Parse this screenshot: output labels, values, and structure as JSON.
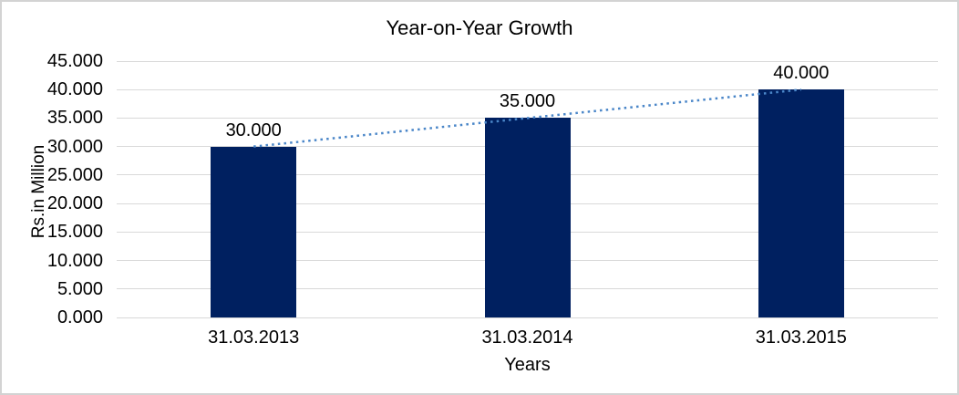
{
  "window": {
    "background_color": "#FFFFFF",
    "border_color": "#D3D3D3"
  },
  "chart_data": {
    "type": "bar",
    "title": "Year-on-Year Growth",
    "categories": [
      "31.03.2013",
      "31.03.2014",
      "31.03.2015"
    ],
    "values": [
      30,
      35,
      40
    ],
    "data_labels": [
      "30.000",
      "35.000",
      "40.000"
    ],
    "xlabel": "Years",
    "ylabel": "Rs.in Million",
    "ylim": [
      0,
      45
    ],
    "ytick_step": 5,
    "ytick_labels": [
      "0.000",
      "5.000",
      "10.000",
      "15.000",
      "20.000",
      "25.000",
      "30.000",
      "35.000",
      "40.000",
      "45.000"
    ],
    "grid": true,
    "legend": "none",
    "bar_color": "#002060",
    "gridline_color": "#D9D9D9",
    "text_color": "#000000",
    "trendline": {
      "type": "linear",
      "style": "dotted",
      "color": "#4A86C8"
    }
  }
}
